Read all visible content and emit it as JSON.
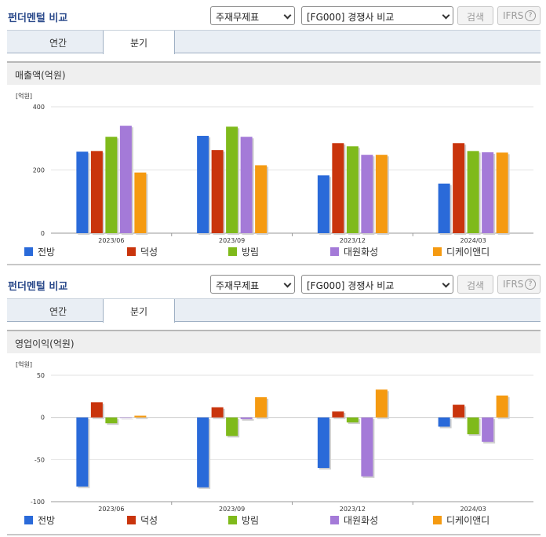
{
  "header": {
    "title": "펀더멘털 비교",
    "select_type": "주재무제표",
    "select_compare": "[FG000] 경쟁사 비교",
    "search_label": "검색",
    "ifrs_label": "IFRS",
    "help_glyph": "?"
  },
  "tabs": [
    {
      "label": "연간",
      "active": false
    },
    {
      "label": "분기",
      "active": true
    }
  ],
  "colors": {
    "전방": "#2a6ad9",
    "덕성": "#c9340c",
    "방림": "#7fba1b",
    "대원화성": "#a47ad8",
    "디케이앤디": "#f59a11"
  },
  "legend": [
    "전방",
    "덕성",
    "방림",
    "대원화성",
    "디케이앤디"
  ],
  "chart_data": [
    {
      "type": "bar",
      "title": "매출액(억원)",
      "unit": "[억원]",
      "categories": [
        "2023/06",
        "2023/09",
        "2023/12",
        "2024/03"
      ],
      "ylim": [
        0,
        400
      ],
      "yticks": [
        0,
        200,
        400
      ],
      "grid": true,
      "legend_position": "bottom",
      "series": [
        {
          "name": "전방",
          "values": [
            258,
            308,
            183,
            157
          ]
        },
        {
          "name": "덕성",
          "values": [
            260,
            263,
            285,
            285
          ]
        },
        {
          "name": "방림",
          "values": [
            305,
            337,
            275,
            260
          ]
        },
        {
          "name": "대원화성",
          "values": [
            340,
            305,
            248,
            256
          ]
        },
        {
          "name": "디케이앤디",
          "values": [
            192,
            215,
            248,
            255
          ]
        }
      ]
    },
    {
      "type": "bar",
      "title": "영업이익(억원)",
      "unit": "[억원]",
      "categories": [
        "2023/06",
        "2023/09",
        "2023/12",
        "2024/03"
      ],
      "ylim": [
        -100,
        50
      ],
      "yticks": [
        -100,
        -50,
        0,
        50
      ],
      "grid": true,
      "legend_position": "bottom",
      "series": [
        {
          "name": "전방",
          "values": [
            -82,
            -83,
            -60,
            -11
          ]
        },
        {
          "name": "덕성",
          "values": [
            18,
            12,
            7,
            15
          ]
        },
        {
          "name": "방림",
          "values": [
            -7,
            -22,
            -6,
            -20
          ]
        },
        {
          "name": "대원화성",
          "values": [
            0,
            -2,
            -70,
            -29
          ]
        },
        {
          "name": "디케이앤디",
          "values": [
            2,
            24,
            33,
            26
          ]
        }
      ]
    }
  ]
}
